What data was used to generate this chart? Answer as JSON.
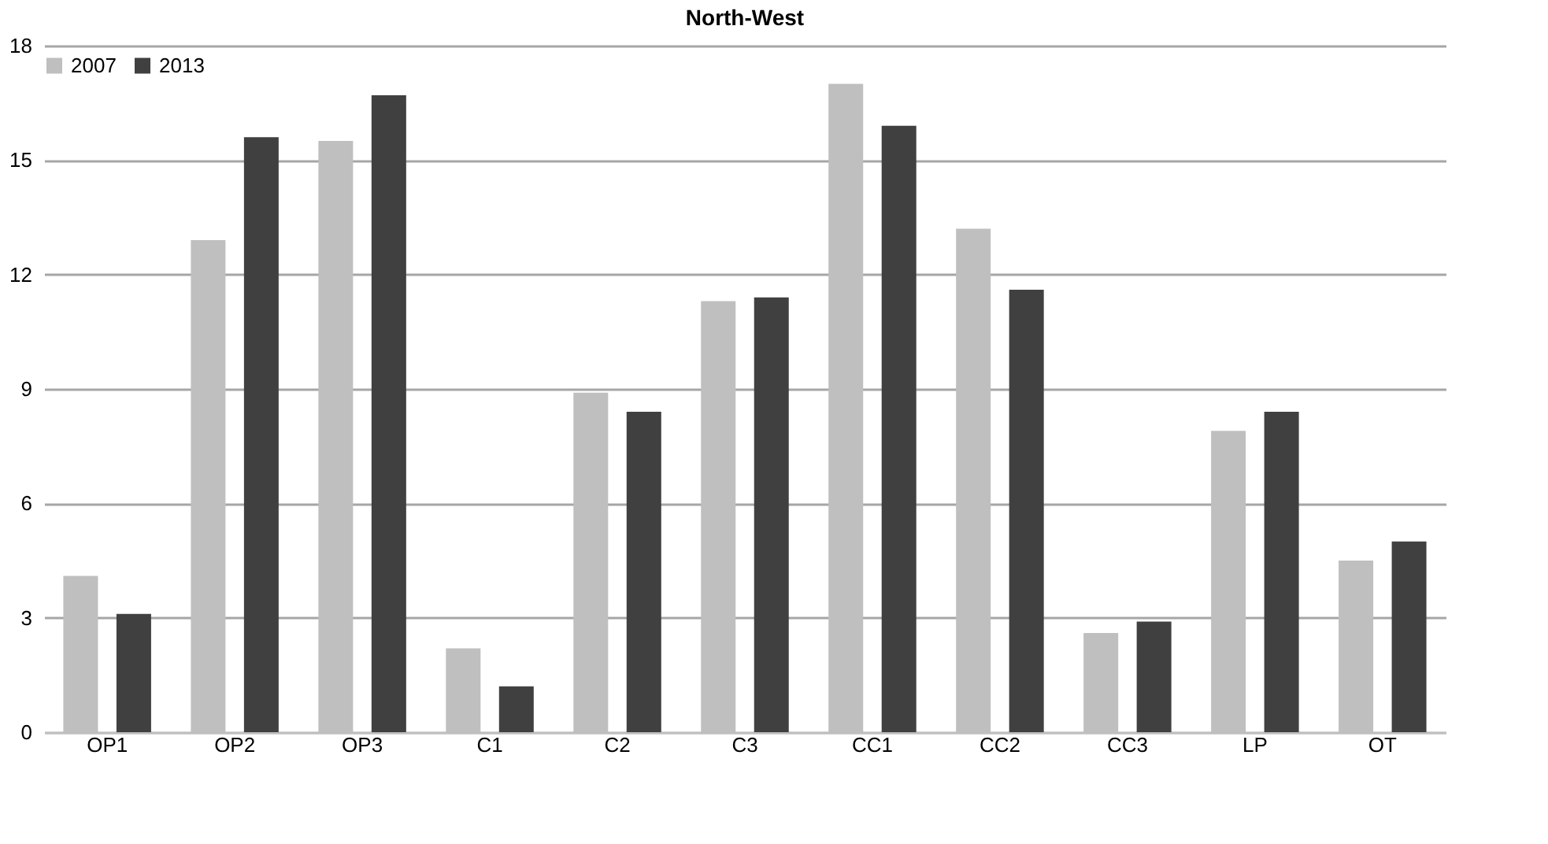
{
  "chart_data": {
    "type": "bar",
    "title": "North-West",
    "categories": [
      "OP1",
      "OP2",
      "OP3",
      "C1",
      "C2",
      "C3",
      "CC1",
      "CC2",
      "CC3",
      "LP",
      "OT"
    ],
    "series": [
      {
        "name": "2007",
        "color": "#bfbfbf",
        "values": [
          4.1,
          12.9,
          15.5,
          2.2,
          8.9,
          11.3,
          17.0,
          13.2,
          2.6,
          7.9,
          4.5
        ]
      },
      {
        "name": "2013",
        "color": "#404040",
        "values": [
          3.1,
          15.6,
          16.7,
          1.2,
          8.4,
          11.4,
          15.9,
          11.6,
          2.9,
          8.4,
          5.0
        ]
      }
    ],
    "ylim": [
      0,
      18
    ],
    "yticks": [
      0,
      3,
      6,
      9,
      12,
      15,
      18
    ],
    "grid": "y",
    "legend": "top"
  }
}
